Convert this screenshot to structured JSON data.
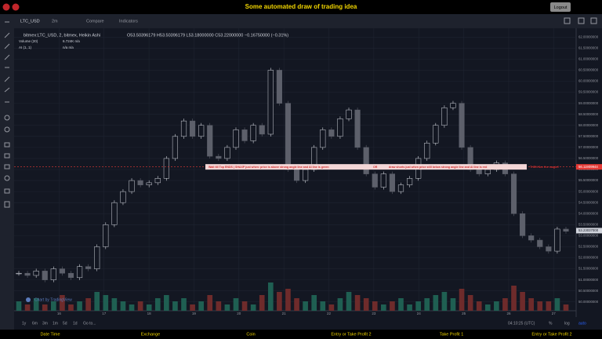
{
  "header": {
    "title": "Some automated draw of trading idea",
    "logout": "Logout"
  },
  "toolbar": {
    "symbol": "LTC_USD",
    "interval": "2m",
    "compare": "Compare",
    "indicators": "Indicators"
  },
  "legend": {
    "series": "bitmex:LTC_USD, 2, bitmex, Heikin Ashi",
    "ohlc": "O53.50396179  H53.50396179  L53.18000000  C53.22000000  −0.16750000 (−0.31%)",
    "volume_name": "Volume (20)",
    "volume_values": "6.724K  n/a",
    "ai_name": "AI (1, 1)",
    "ai_values": "n/a  n/a"
  },
  "chart": {
    "type": "candlestick",
    "up_color": "#d1d4dc",
    "down_color": "#5d606b",
    "volume_up_color": "#1f5f52",
    "volume_down_color": "#6e2b2b",
    "closes": [
      51.3,
      51.2,
      51.4,
      51.0,
      51.5,
      51.3,
      51.1,
      51.6,
      51.5,
      52.5,
      53.5,
      54.5,
      55.0,
      55.5,
      55.3,
      55.4,
      55.6,
      56.5,
      57.5,
      58.2,
      57.5,
      58.0,
      56.6,
      56.5,
      57.0,
      57.8,
      57.3,
      58.0,
      57.6,
      60.5,
      59.0,
      56.0,
      55.5,
      56.0,
      57.0,
      57.8,
      57.5,
      58.3,
      58.7,
      57.0,
      55.8,
      55.2,
      55.8,
      55.0,
      55.3,
      55.6,
      56.5,
      57.2,
      58.0,
      58.8,
      59.0,
      57.0,
      56.0,
      55.8,
      56.0,
      56.3,
      55.8,
      54.0,
      53.0,
      52.8,
      52.5,
      52.3,
      53.3,
      53.2
    ],
    "volumes": [
      3,
      2,
      4,
      2,
      3,
      5,
      2,
      3,
      4,
      6,
      5,
      4,
      3,
      2,
      3,
      2,
      4,
      5,
      3,
      4,
      2,
      3,
      5,
      3,
      2,
      4,
      3,
      2,
      5,
      9,
      6,
      7,
      4,
      3,
      5,
      3,
      2,
      4,
      6,
      5,
      4,
      3,
      2,
      3,
      4,
      2,
      3,
      4,
      5,
      6,
      4,
      7,
      5,
      3,
      2,
      3,
      4,
      8,
      6,
      4,
      3,
      3,
      4,
      2
    ],
    "ylim": [
      49.6,
      62.4
    ],
    "yticks": [
      {
        "value": 50,
        "label": "50.00000000"
      },
      {
        "value": 50.5,
        "label": "50.50000000"
      },
      {
        "value": 51,
        "label": "51.00000000"
      },
      {
        "value": 51.5,
        "label": "51.50000000"
      },
      {
        "value": 52,
        "label": "52.00000000"
      },
      {
        "value": 52.5,
        "label": "52.50000000"
      },
      {
        "value": 53,
        "label": "53.00000000"
      },
      {
        "value": 53.5,
        "label": "53.50000000"
      },
      {
        "value": 54,
        "label": "54.00000000"
      },
      {
        "value": 54.5,
        "label": "54.50000000"
      },
      {
        "value": 55,
        "label": "55.00000000"
      },
      {
        "value": 55.5,
        "label": "55.50000000"
      },
      {
        "value": 56,
        "label": "56.00000000"
      },
      {
        "value": 56.5,
        "label": "56.50000000"
      },
      {
        "value": 57,
        "label": "57.00000000"
      },
      {
        "value": 57.5,
        "label": "57.50000000"
      },
      {
        "value": 58,
        "label": "58.00000000"
      },
      {
        "value": 58.5,
        "label": "58.50000000"
      },
      {
        "value": 59,
        "label": "59.00000000"
      },
      {
        "value": 59.5,
        "label": "59.50000000"
      },
      {
        "value": 60,
        "label": "60.00000000"
      },
      {
        "value": 60.5,
        "label": "60.50000000"
      },
      {
        "value": 61,
        "label": "61.00000000"
      },
      {
        "value": 61.5,
        "label": "61.50000000"
      },
      {
        "value": 62,
        "label": "62.00000000"
      }
    ],
    "xlim": [
      15,
      27.5
    ],
    "xticks": [
      16,
      17,
      18,
      19,
      20,
      21,
      22,
      23,
      24,
      25,
      26,
      27
    ],
    "signal_price": 56.11909944,
    "signal_label": "56.11909944",
    "current_price": 53.23037,
    "current_label": "53.23037000",
    "banner": [
      "Wait till Top ENDS  |  SHAXP just when: price is above strong angle line and AI line is green",
      "OR",
      "draw shorts just when price still below strong angle line and AI line is red",
      "THEN See the magic!!"
    ],
    "watermark": "Chart by TradingView"
  },
  "range_bar": {
    "ranges": [
      "1y",
      "6m",
      "3m",
      "1m",
      "5d",
      "1d",
      "Go to..."
    ],
    "time": "04:10:25 (UTC)",
    "percent": "%",
    "log": "log",
    "auto": "auto"
  },
  "footer": [
    "Date Time",
    "Exchange",
    "Coin",
    "Entry or Take Profit 2",
    "Take Profit 1",
    "Entry or Take Profit 2"
  ]
}
